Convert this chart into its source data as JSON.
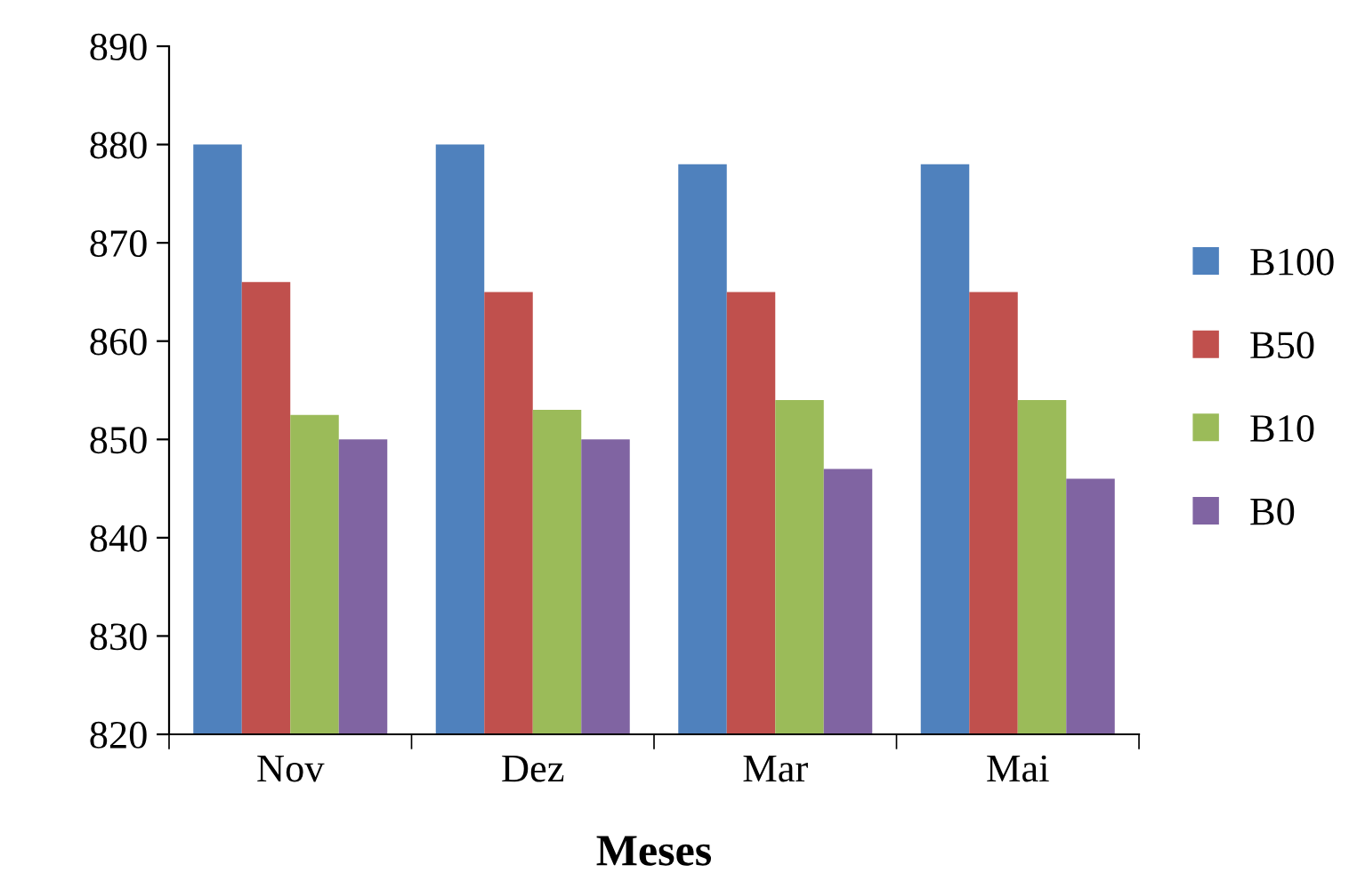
{
  "chart_data": {
    "type": "bar",
    "xlabel": "Meses",
    "categories": [
      "Nov",
      "Dez",
      "Mar",
      "Mai"
    ],
    "series": [
      {
        "name": "B100",
        "color": "#4f81bd",
        "values": [
          880,
          880,
          878,
          878
        ]
      },
      {
        "name": "B50",
        "color": "#c0504d",
        "values": [
          866,
          865,
          865,
          865
        ]
      },
      {
        "name": "B10",
        "color": "#9bbb59",
        "values": [
          852.5,
          853,
          854,
          854
        ]
      },
      {
        "name": "B0",
        "color": "#8064a2",
        "values": [
          850,
          850,
          847,
          846
        ]
      }
    ],
    "ylim": [
      820,
      890
    ],
    "yticks": [
      820,
      830,
      840,
      850,
      860,
      870,
      880,
      890
    ],
    "grid": false,
    "legend": "right"
  }
}
